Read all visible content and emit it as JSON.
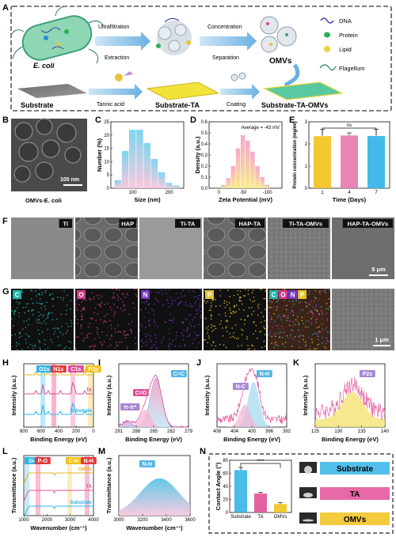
{
  "panel_letters": [
    "A",
    "B",
    "C",
    "D",
    "E",
    "F",
    "G",
    "H",
    "I",
    "J",
    "K",
    "L",
    "M",
    "N"
  ],
  "panel_a": {
    "source": "E. coli",
    "step1_top": "Ultrafiltration",
    "step1_bottom": "Extraction",
    "step2_top": "Concentration",
    "step2_bottom": "Separation",
    "product": "OMVs",
    "legend": [
      "DNA",
      "Protein",
      "Lipid",
      "Flagellum"
    ],
    "substrate": "Substrate",
    "tannic_acid": "Tannic acid",
    "substrate_ta": "Substrate-TA",
    "coating": "Coating",
    "substrate_ta_omvs": "Substrate-TA-OMVs"
  },
  "panel_b": {
    "scale_bar": "100 nm",
    "caption": "OMVs-E. coli"
  },
  "panel_f": {
    "labels": [
      "Ti",
      "HAP",
      "Ti-TA",
      "HAP-TA",
      "Ti-TA-OMVs",
      "HAP-TA-OMVs"
    ],
    "scale_bar": "5 μm"
  },
  "panel_g": {
    "labels": [
      "C",
      "O",
      "N",
      "P"
    ],
    "merge": [
      "C",
      "O",
      "N",
      "P"
    ],
    "scale_bar": "1 μm",
    "colors": [
      "#1fb5a8",
      "#d23c8c",
      "#7a38c8",
      "#e6c42c"
    ]
  },
  "chart_data": [
    {
      "panel": "C",
      "type": "bar",
      "xlabel": "Size (nm)",
      "ylabel": "Number (%)",
      "x": [
        60,
        80,
        100,
        120,
        140,
        160,
        180,
        200,
        220
      ],
      "values": [
        3,
        14,
        22,
        22,
        17,
        11,
        6,
        2,
        1
      ],
      "xticks": [
        "100",
        "200"
      ],
      "yticks": [
        "0",
        "5",
        "10",
        "15",
        "20",
        "25"
      ],
      "ylim": [
        0,
        25
      ]
    },
    {
      "panel": "D",
      "type": "bar",
      "xlabel": "Zeta Potential (mV)",
      "ylabel": "Density (a.u.)",
      "annotation": "Average = -43 mV",
      "x": [
        -10,
        -20,
        -30,
        -40,
        -50,
        -60,
        -70,
        -80,
        -90,
        -100
      ],
      "values": [
        0.03,
        0.09,
        0.2,
        0.36,
        0.48,
        0.43,
        0.33,
        0.2,
        0.1,
        0.03
      ],
      "xticks": [
        "0",
        "-50",
        "-100"
      ],
      "yticks": [
        "0.0",
        "0.1",
        "0.2",
        "0.3",
        "0.4",
        "0.5",
        "0.6"
      ],
      "ylim": [
        0,
        0.6
      ]
    },
    {
      "panel": "E",
      "type": "bar",
      "xlabel": "Time (Days)",
      "ylabel": "Protein concentration (mg/ml)",
      "categories": [
        "1",
        "4",
        "7"
      ],
      "values": [
        2.35,
        2.38,
        2.36
      ],
      "errors": [
        0.3,
        0.12,
        0.3
      ],
      "annotation": "ns",
      "yticks": [
        "0",
        "1",
        "2",
        "3"
      ],
      "ylim": [
        0,
        3
      ],
      "colors": [
        "#f2c21b",
        "#e777ae",
        "#2fb4e8"
      ]
    },
    {
      "panel": "H",
      "type": "line",
      "xlabel": "Binding Energy (eV)",
      "ylabel": "Intensity (a.u.)",
      "series": [
        {
          "name": "OMVs"
        },
        {
          "name": "TA"
        },
        {
          "name": "Substrate"
        }
      ],
      "peaks": [
        "O1s",
        "N1s",
        "C1s",
        "P2p"
      ],
      "xticks": [
        "800",
        "600",
        "400",
        "200",
        "0"
      ]
    },
    {
      "panel": "I",
      "type": "line",
      "xlabel": "Binding Energy (eV)",
      "ylabel": "Intensity (a.u.)",
      "peaks": [
        "π-π*",
        "C=O",
        "C=C"
      ],
      "xticks": [
        "291",
        "288",
        "285",
        "282",
        "279"
      ]
    },
    {
      "panel": "J",
      "type": "line",
      "xlabel": "Binding Energy (eV)",
      "ylabel": "Intensity (a.u.)",
      "peaks": [
        "N-C",
        "N-H"
      ],
      "xticks": [
        "408",
        "404",
        "400",
        "396",
        "392"
      ]
    },
    {
      "panel": "K",
      "type": "line",
      "xlabel": "Binding Energy (eV)",
      "ylabel": "Intensity (a.u.)",
      "peaks": [
        "P2s"
      ],
      "xticks": [
        "125",
        "130",
        "135",
        "140"
      ]
    },
    {
      "panel": "L",
      "type": "line",
      "xlabel": "Wavenumber (cm⁻¹)",
      "ylabel": "Transmittance (a.u.)",
      "series": [
        {
          "name": "OMVs"
        },
        {
          "name": "TA"
        },
        {
          "name": "Substrate"
        }
      ],
      "bands": [
        "Si-O",
        "P-O",
        "C-H",
        "N-H"
      ],
      "xticks": [
        "1000",
        "2000",
        "3000",
        "4000"
      ]
    },
    {
      "panel": "M",
      "type": "line",
      "xlabel": "Wavenumber (cm⁻¹)",
      "ylabel": "Transmittance (a.u.)",
      "peaks": [
        "N-H"
      ],
      "xticks": [
        "3000",
        "3200",
        "3400",
        "3600"
      ]
    },
    {
      "panel": "N",
      "type": "bar",
      "ylabel": "Contact Angle (°)",
      "categories": [
        "Substrate",
        "TA",
        "OMVs"
      ],
      "values": [
        65,
        29,
        13
      ],
      "errors": [
        4,
        2,
        2
      ],
      "annotation": "****",
      "yticks": [
        "0",
        "20",
        "40",
        "60",
        "80"
      ],
      "ylim": [
        0,
        80
      ],
      "colors": [
        "#35b5e8",
        "#e34f97",
        "#f2c21b"
      ],
      "legend": [
        "Substrate",
        "TA",
        "OMVs"
      ]
    }
  ]
}
